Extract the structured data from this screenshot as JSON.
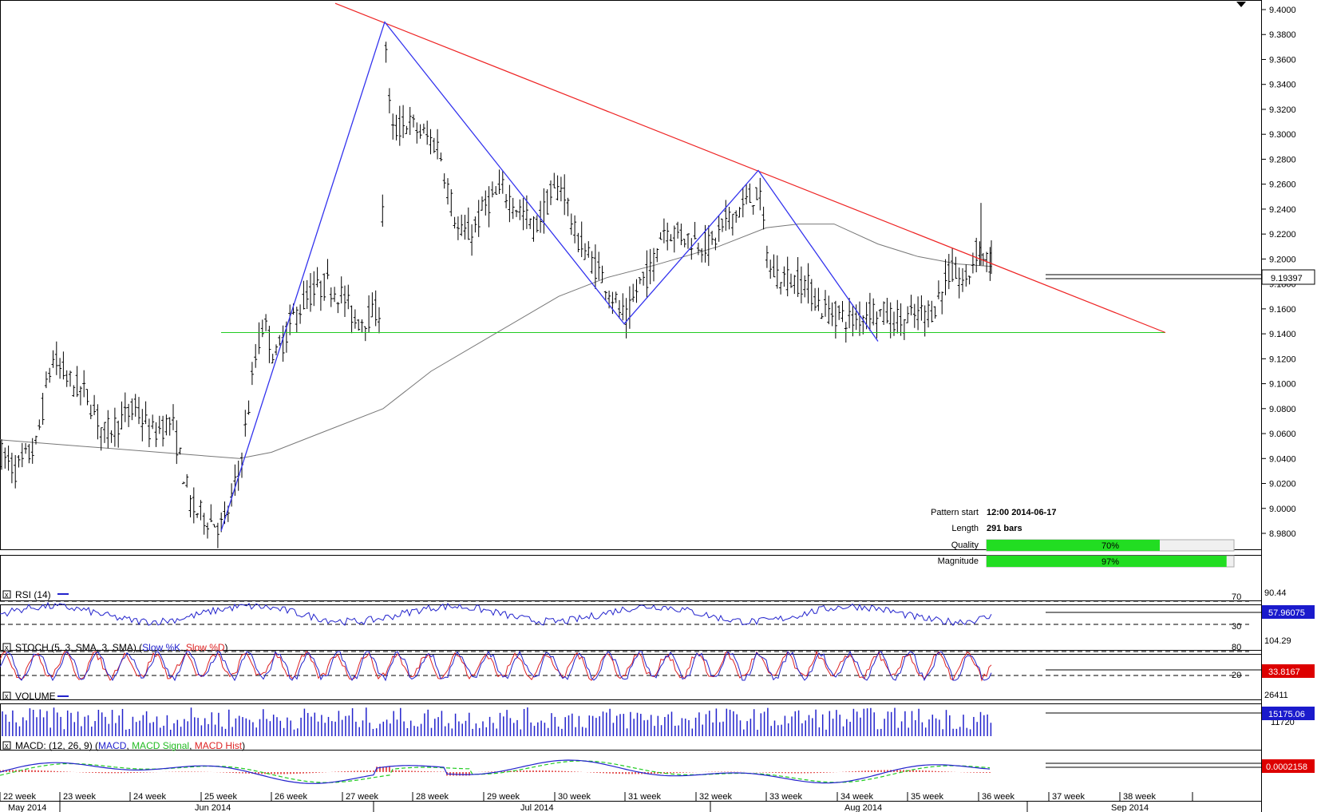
{
  "chart_data": {
    "type": "candlestick",
    "instrument_price_axis": {
      "ticks": [
        "9.4000",
        "9.3800",
        "9.3600",
        "9.3400",
        "9.3200",
        "9.3000",
        "9.2800",
        "9.2600",
        "9.2400",
        "9.2200",
        "9.2000",
        "9.1800",
        "9.1600",
        "9.1400",
        "9.1200",
        "9.1000",
        "9.0800",
        "9.0600",
        "9.0400",
        "9.0200",
        "9.0000",
        "8.9800"
      ],
      "ylim": [
        8.975,
        9.405
      ],
      "last_price": "9.19397"
    },
    "x_axis": {
      "weeks": [
        "22 week",
        "23 week",
        "24 week",
        "25 week",
        "26 week",
        "27 week",
        "28 week",
        "29 week",
        "30 week",
        "31 week",
        "32 week",
        "33 week",
        "34 week",
        "35 week",
        "36 week",
        "37 week",
        "38 week"
      ],
      "months": [
        "May 2014",
        "Jun 2014",
        "Jul 2014",
        "Aug 2014",
        "Sep 2014"
      ]
    },
    "price_anchors": [
      [
        0,
        9.045
      ],
      [
        20,
        9.03
      ],
      [
        45,
        9.05
      ],
      [
        65,
        9.12
      ],
      [
        90,
        9.1
      ],
      [
        110,
        9.09
      ],
      [
        130,
        9.06
      ],
      [
        150,
        9.07
      ],
      [
        170,
        9.08
      ],
      [
        190,
        9.06
      ],
      [
        215,
        9.07
      ],
      [
        240,
        9.0
      ],
      [
        265,
        8.99
      ],
      [
        280,
        8.985
      ],
      [
        300,
        9.03
      ],
      [
        320,
        9.12
      ],
      [
        330,
        9.15
      ],
      [
        345,
        9.12
      ],
      [
        365,
        9.15
      ],
      [
        385,
        9.17
      ],
      [
        410,
        9.18
      ],
      [
        430,
        9.17
      ],
      [
        445,
        9.15
      ],
      [
        465,
        9.155
      ],
      [
        478,
        9.16
      ],
      [
        482,
        9.39
      ],
      [
        490,
        9.3
      ],
      [
        510,
        9.31
      ],
      [
        530,
        9.3
      ],
      [
        550,
        9.29
      ],
      [
        560,
        9.26
      ],
      [
        575,
        9.22
      ],
      [
        590,
        9.22
      ],
      [
        610,
        9.245
      ],
      [
        630,
        9.255
      ],
      [
        650,
        9.24
      ],
      [
        670,
        9.225
      ],
      [
        690,
        9.25
      ],
      [
        705,
        9.26
      ],
      [
        720,
        9.22
      ],
      [
        740,
        9.2
      ],
      [
        760,
        9.18
      ],
      [
        775,
        9.16
      ],
      [
        785,
        9.15
      ],
      [
        800,
        9.18
      ],
      [
        815,
        9.19
      ],
      [
        830,
        9.225
      ],
      [
        850,
        9.22
      ],
      [
        870,
        9.215
      ],
      [
        890,
        9.21
      ],
      [
        910,
        9.23
      ],
      [
        935,
        9.245
      ],
      [
        950,
        9.255
      ],
      [
        965,
        9.19
      ],
      [
        985,
        9.185
      ],
      [
        1010,
        9.18
      ],
      [
        1030,
        9.16
      ],
      [
        1050,
        9.155
      ],
      [
        1070,
        9.15
      ],
      [
        1090,
        9.16
      ],
      [
        1110,
        9.155
      ],
      [
        1130,
        9.15
      ],
      [
        1150,
        9.155
      ],
      [
        1170,
        9.16
      ],
      [
        1190,
        9.19
      ],
      [
        1210,
        9.18
      ],
      [
        1225,
        9.21
      ],
      [
        1235,
        9.2
      ],
      [
        1243,
        9.195
      ]
    ],
    "moving_average": [
      [
        0,
        9.055
      ],
      [
        100,
        9.05
      ],
      [
        200,
        9.045
      ],
      [
        300,
        9.04
      ],
      [
        340,
        9.045
      ],
      [
        400,
        9.06
      ],
      [
        480,
        9.08
      ],
      [
        540,
        9.11
      ],
      [
        620,
        9.14
      ],
      [
        700,
        9.17
      ],
      [
        760,
        9.185
      ],
      [
        820,
        9.195
      ],
      [
        900,
        9.21
      ],
      [
        960,
        9.225
      ],
      [
        1000,
        9.228
      ],
      [
        1045,
        9.228
      ],
      [
        1100,
        9.212
      ],
      [
        1150,
        9.202
      ],
      [
        1200,
        9.196
      ],
      [
        1243,
        9.194
      ]
    ],
    "pattern_lines": {
      "zigzag": [
        [
          277,
          8.982
        ],
        [
          482,
          9.39
        ],
        [
          782,
          9.148
        ],
        [
          950,
          9.271
        ],
        [
          1100,
          9.134
        ],
        [
          1100,
          9.134
        ]
      ],
      "resistance": [
        [
          420,
          9.405
        ],
        [
          1460,
          9.141
        ]
      ],
      "support": [
        [
          277,
          9.141
        ],
        [
          1460,
          9.141
        ]
      ]
    },
    "pattern_info": {
      "pattern_start_label": "Pattern start",
      "pattern_start_value": "12:00 2014-06-17",
      "length_label": "Length",
      "length_value": "291 bars",
      "quality_label": "Quality",
      "quality_value": 70,
      "quality_text": "70%",
      "magnitude_label": "Magnitude",
      "magnitude_value": 97,
      "magnitude_text": "97%"
    },
    "indicators": {
      "rsi": {
        "title": "RSI (14)",
        "levels": [
          "70",
          "30"
        ],
        "top_tick": "90.44",
        "last": "57.96075"
      },
      "stoch": {
        "title_prefix": "STOCH (5, 3, SMA, 3, SMA)",
        "series_k": "Slow %K",
        "series_d": "Slow %D",
        "levels": [
          "80",
          "20"
        ],
        "top_tick": "104.29",
        "last": "33.8167"
      },
      "volume": {
        "title": "VOLUME",
        "top_tick": "26411",
        "mid_tick": "11720",
        "last": "15175.06"
      },
      "macd": {
        "title_prefix": "MACD: (12, 26, 9)",
        "series_macd": "MACD",
        "series_signal": "MACD Signal",
        "series_hist": "MACD Hist",
        "last": "0.0002158"
      }
    },
    "colors": {
      "zigzag": "#3333ee",
      "resistance": "#ee2222",
      "support": "#22cc22",
      "moving_average": "#777777",
      "rsi": "#2222cc",
      "stoch_k": "#2222cc",
      "stoch_d": "#dd2222",
      "volume": "#2222cc",
      "macd": "#2222cc",
      "macd_signal": "#22cc22",
      "macd_hist": "#dd2222",
      "bar_fill": "#22dd22"
    }
  }
}
